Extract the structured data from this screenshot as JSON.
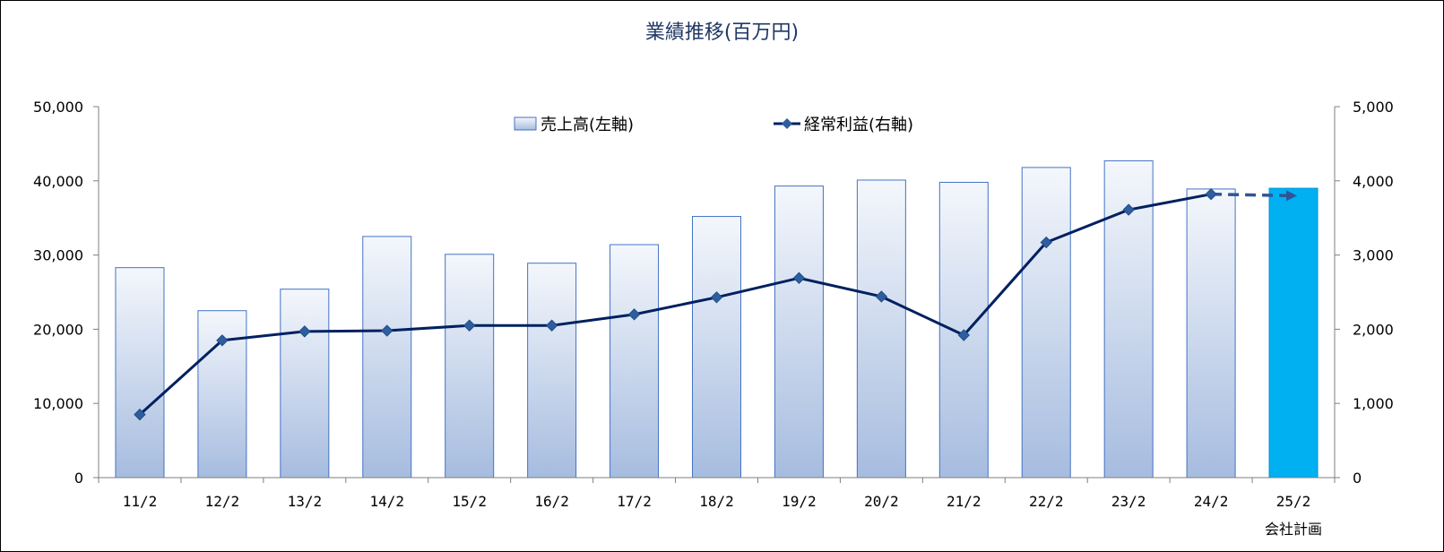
{
  "chart_data": {
    "type": "bar+line",
    "title": "業績推移(百万円)",
    "categories": [
      "11/2",
      "12/2",
      "13/2",
      "14/2",
      "15/2",
      "16/2",
      "17/2",
      "18/2",
      "19/2",
      "20/2",
      "21/2",
      "22/2",
      "23/2",
      "24/2",
      "25/2"
    ],
    "category_sublabels": [
      "",
      "",
      "",
      "",
      "",
      "",
      "",
      "",
      "",
      "",
      "",
      "",
      "",
      "",
      "会社計画"
    ],
    "series": [
      {
        "name": "売上高(左軸)",
        "type": "bar",
        "axis": "left",
        "values": [
          28300,
          22500,
          25400,
          32500,
          30100,
          28900,
          31400,
          35200,
          39300,
          40100,
          39800,
          41800,
          42700,
          38900,
          39000
        ],
        "highlight_index": 14,
        "highlight_color": "#00b0f0"
      },
      {
        "name": "経常利益(右軸)",
        "type": "line",
        "axis": "right",
        "values": [
          850,
          1850,
          1970,
          1980,
          2050,
          2050,
          2200,
          2430,
          2690,
          2440,
          1920,
          3170,
          3610,
          3820,
          3800
        ],
        "forecast_from_index": 13,
        "color": "#002060",
        "forecast_color": "#2f5597"
      }
    ],
    "y_left": {
      "min": 0,
      "max": 50000,
      "ticks": [
        "0",
        "10,000",
        "20,000",
        "30,000",
        "40,000",
        "50,000"
      ]
    },
    "y_right": {
      "min": 0,
      "max": 5000,
      "ticks": [
        "0",
        "1,000",
        "2,000",
        "3,000",
        "4,000",
        "5,000"
      ]
    },
    "legend_position": "top-center",
    "grid": false
  }
}
